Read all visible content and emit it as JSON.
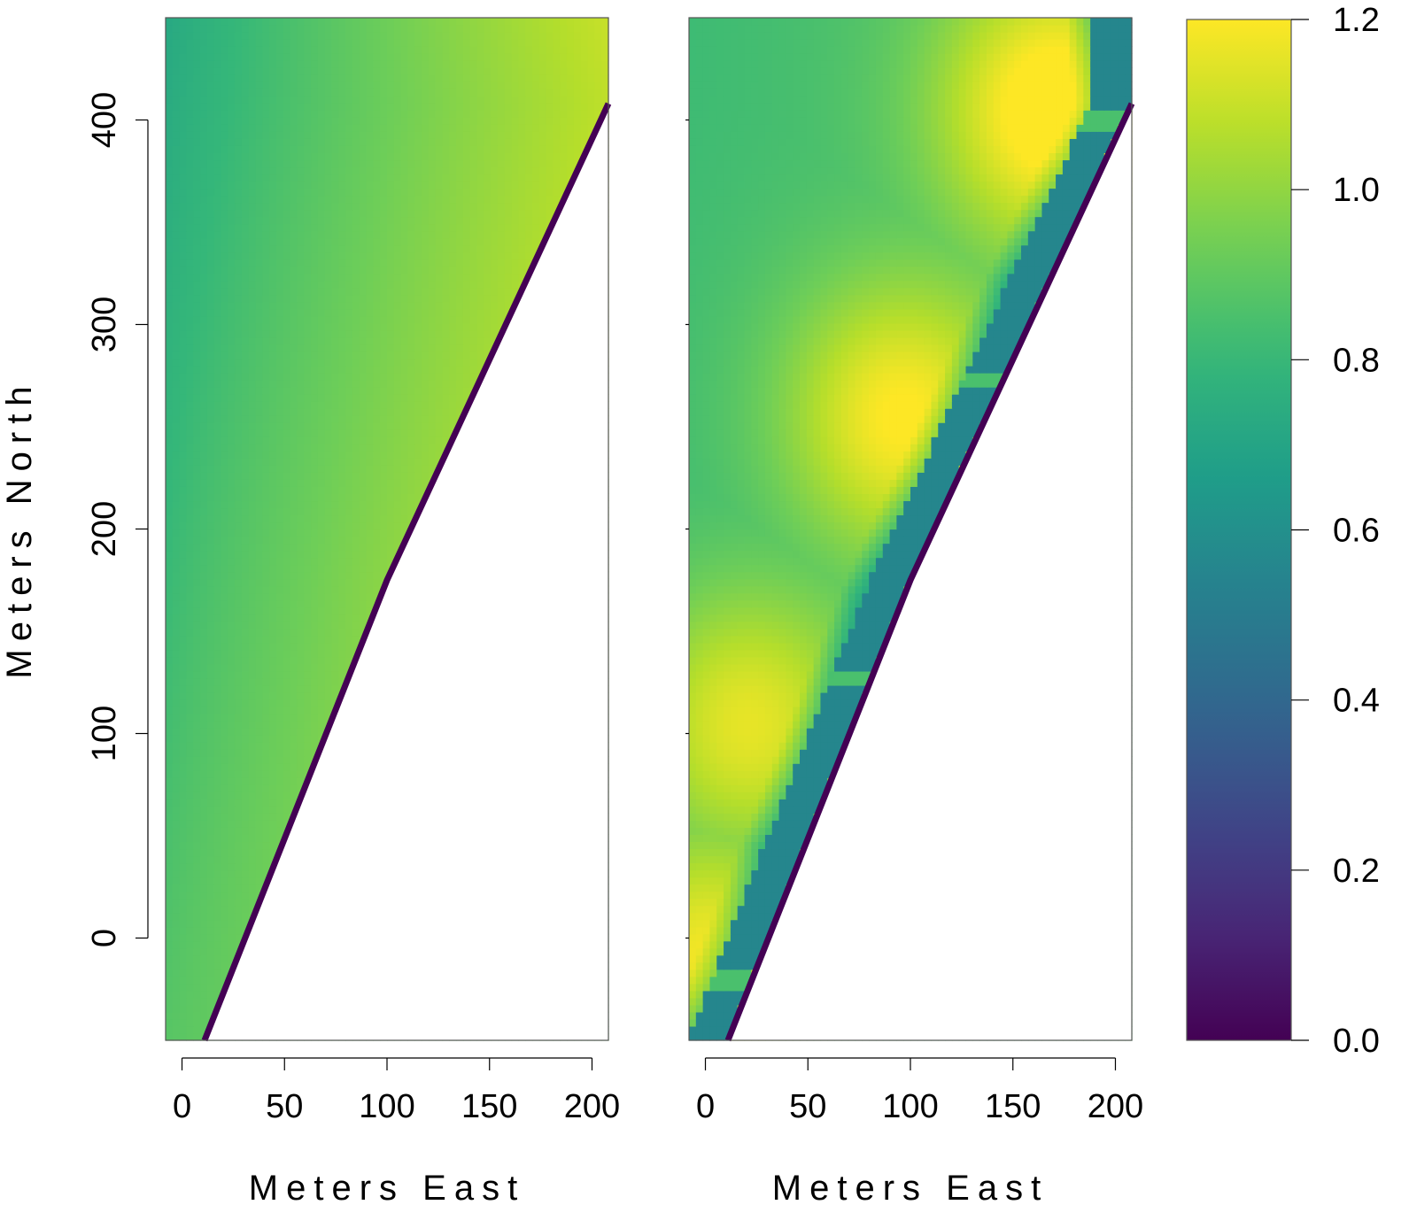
{
  "chart_data": [
    {
      "type": "heatmap",
      "panel": "left",
      "xlabel": "Meters East",
      "ylabel": "Meters North",
      "xlim": [
        -8,
        208
      ],
      "ylim": [
        -50,
        450
      ],
      "xticks": [
        0,
        50,
        100,
        150,
        200
      ],
      "yticks": [
        0,
        100,
        200,
        300,
        400
      ],
      "shoreline": [
        [
          11,
          -50
        ],
        [
          100,
          175
        ],
        [
          208,
          408
        ]
      ],
      "field": {
        "value_at_x0_ytop": 0.72,
        "value_at_x0_ybottom": 0.88,
        "value_near_shore_top": 1.1,
        "value_near_shore_bottom": 0.9
      },
      "grid": false
    },
    {
      "type": "heatmap",
      "panel": "right",
      "xlabel": "Meters East",
      "ylabel": "",
      "xlim": [
        -8,
        208
      ],
      "ylim": [
        -50,
        450
      ],
      "xticks": [
        0,
        50,
        100,
        150,
        200
      ],
      "yticks_unlabeled": [
        0,
        100,
        200,
        300,
        400
      ],
      "shoreline": [
        [
          11,
          -50
        ],
        [
          100,
          175
        ],
        [
          208,
          408
        ]
      ],
      "structures_band_value": 0.55,
      "structures_band_width_m": 20,
      "gaps_north_m": [
        -20,
        128,
        272,
        400
      ],
      "hotspots": [
        {
          "x": 0,
          "y": -10,
          "value": 1.13
        },
        {
          "x": 20,
          "y": 105,
          "value": 1.1
        },
        {
          "x": 95,
          "y": 255,
          "value": 1.13
        },
        {
          "x": 170,
          "y": 405,
          "value": 1.17
        }
      ],
      "background_value": 0.82,
      "grid": false
    }
  ],
  "colorbar": {
    "colormap": "viridis",
    "min": 0.0,
    "max": 1.2,
    "ticks": [
      "0.0",
      "0.2",
      "0.4",
      "0.6",
      "0.8",
      "1.0",
      "1.2"
    ]
  },
  "labels": {
    "x_title_left": "Meters East",
    "x_title_right": "Meters East",
    "y_title": "Meters North"
  },
  "x_tick_labels": [
    "0",
    "50",
    "100",
    "150",
    "200"
  ],
  "y_tick_labels": [
    "0",
    "100",
    "200",
    "300",
    "400"
  ]
}
